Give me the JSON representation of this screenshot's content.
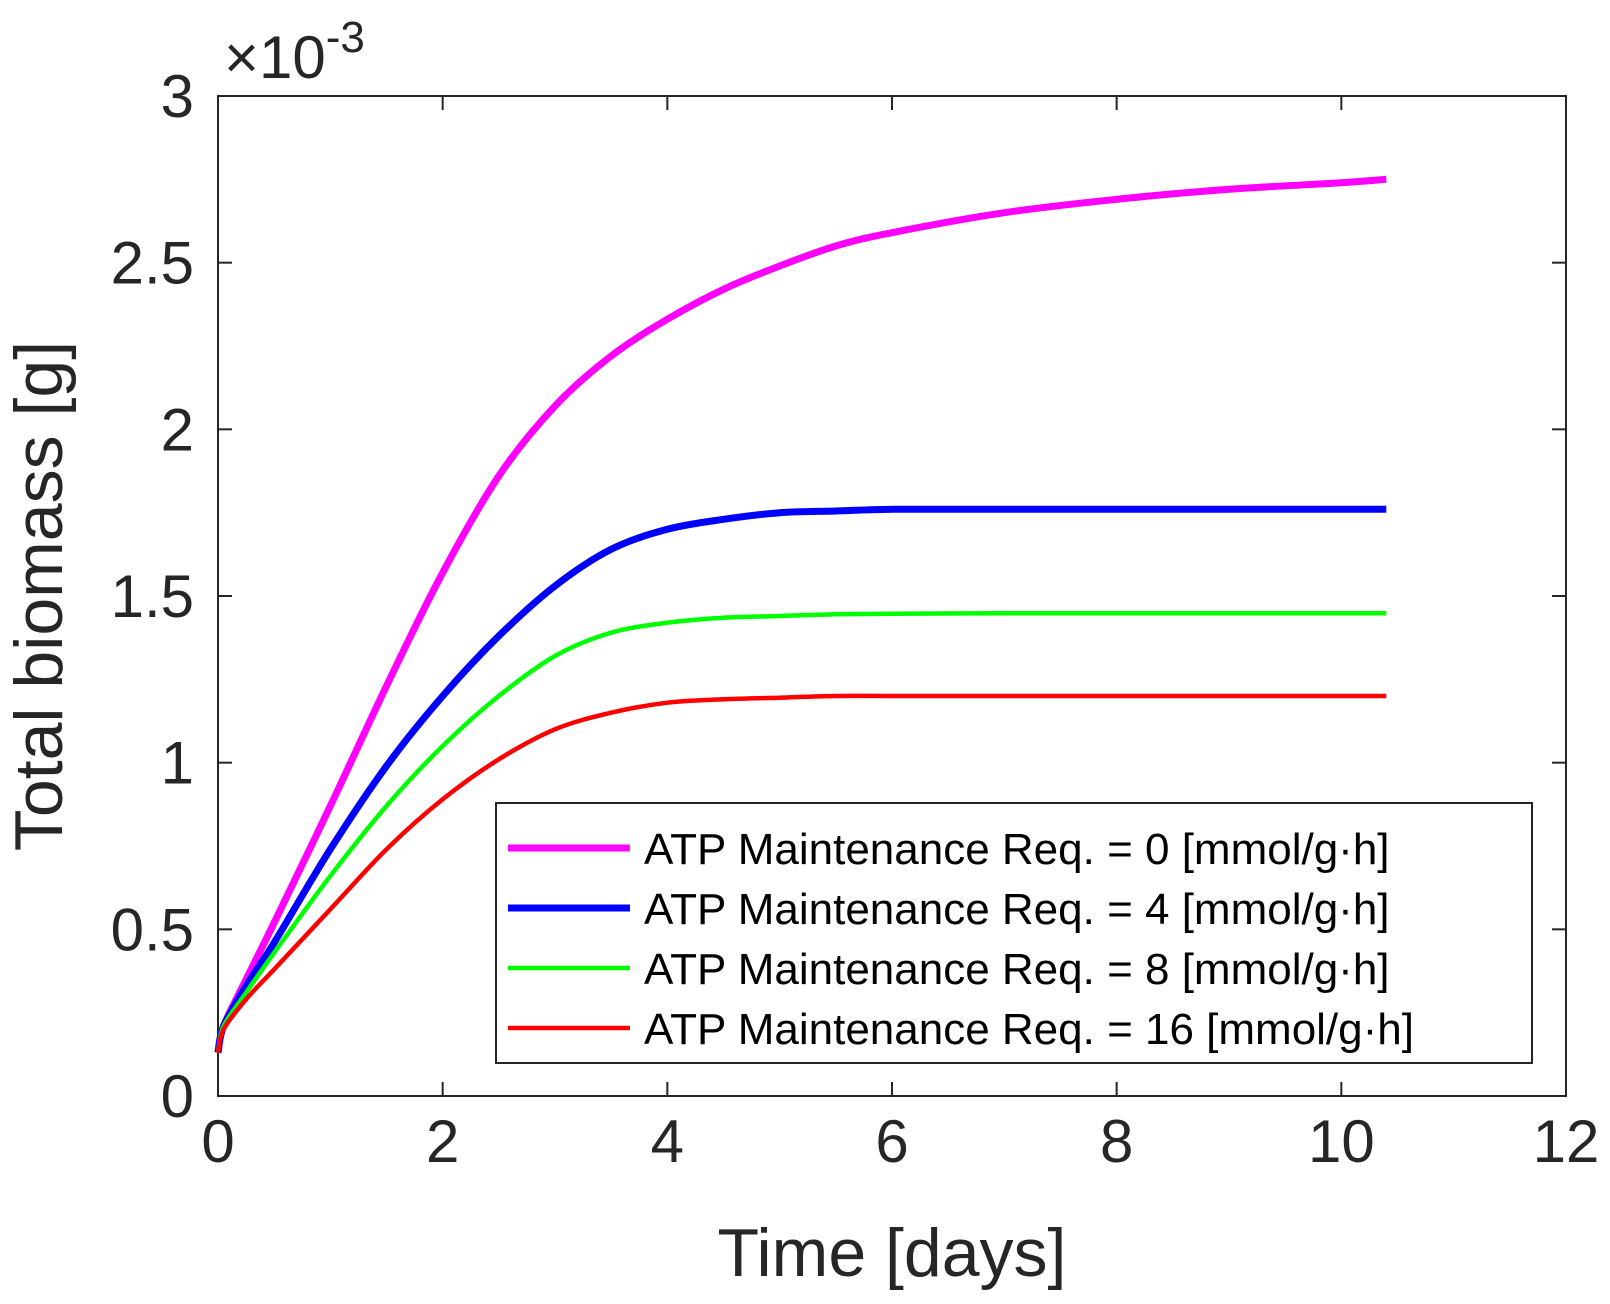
{
  "chart_data": {
    "type": "line",
    "title": "",
    "xlabel": "Time [days]",
    "ylabel": "Total biomass [g]",
    "y_exponent_multiplier": "×10",
    "y_exponent_power": "-3",
    "xlim": [
      0,
      12
    ],
    "ylim": [
      0,
      3
    ],
    "x_ticks": [
      0,
      2,
      4,
      6,
      8,
      10,
      12
    ],
    "x_tick_labels": [
      "0",
      "2",
      "4",
      "6",
      "8",
      "10",
      "12"
    ],
    "y_ticks": [
      0,
      0.5,
      1,
      1.5,
      2,
      2.5,
      3
    ],
    "y_tick_labels": [
      "0",
      "0.5",
      "1",
      "1.5",
      "2",
      "2.5",
      "3"
    ],
    "grid": false,
    "legend_position": "bottom-right",
    "x": [
      0,
      0.05,
      0.25,
      0.5,
      1,
      1.5,
      2,
      2.5,
      3,
      3.5,
      4,
      4.5,
      5,
      5.5,
      6,
      7,
      8,
      9,
      10,
      10.4
    ],
    "series": [
      {
        "name": "ATP Maintenance Req. = 0 [mmol/g·h]",
        "color": "#ff00ff",
        "line_width": "thick",
        "values": [
          0.13,
          0.21,
          0.35,
          0.52,
          0.87,
          1.23,
          1.57,
          1.86,
          2.07,
          2.22,
          2.33,
          2.42,
          2.49,
          2.55,
          2.59,
          2.65,
          2.69,
          2.72,
          2.74,
          2.75
        ]
      },
      {
        "name": "ATP Maintenance Req. = 4 [mmol/g·h]",
        "color": "#0000ff",
        "line_width": "thick",
        "values": [
          0.13,
          0.21,
          0.33,
          0.46,
          0.74,
          0.99,
          1.2,
          1.38,
          1.53,
          1.64,
          1.7,
          1.73,
          1.75,
          1.755,
          1.76,
          1.76,
          1.76,
          1.76,
          1.76,
          1.76
        ]
      },
      {
        "name": "ATP Maintenance Req. = 8 [mmol/g·h]",
        "color": "#00ff00",
        "line_width": "normal",
        "values": [
          0.13,
          0.21,
          0.31,
          0.43,
          0.66,
          0.87,
          1.05,
          1.2,
          1.32,
          1.39,
          1.42,
          1.435,
          1.44,
          1.445,
          1.447,
          1.448,
          1.448,
          1.448,
          1.448,
          1.448
        ]
      },
      {
        "name": "ATP Maintenance Req. = 16 [mmol/g·h]",
        "color": "#ff0000",
        "line_width": "normal",
        "values": [
          0.13,
          0.2,
          0.29,
          0.38,
          0.56,
          0.74,
          0.89,
          1.01,
          1.1,
          1.15,
          1.18,
          1.19,
          1.195,
          1.2,
          1.2,
          1.2,
          1.2,
          1.2,
          1.2,
          1.2
        ]
      }
    ]
  }
}
